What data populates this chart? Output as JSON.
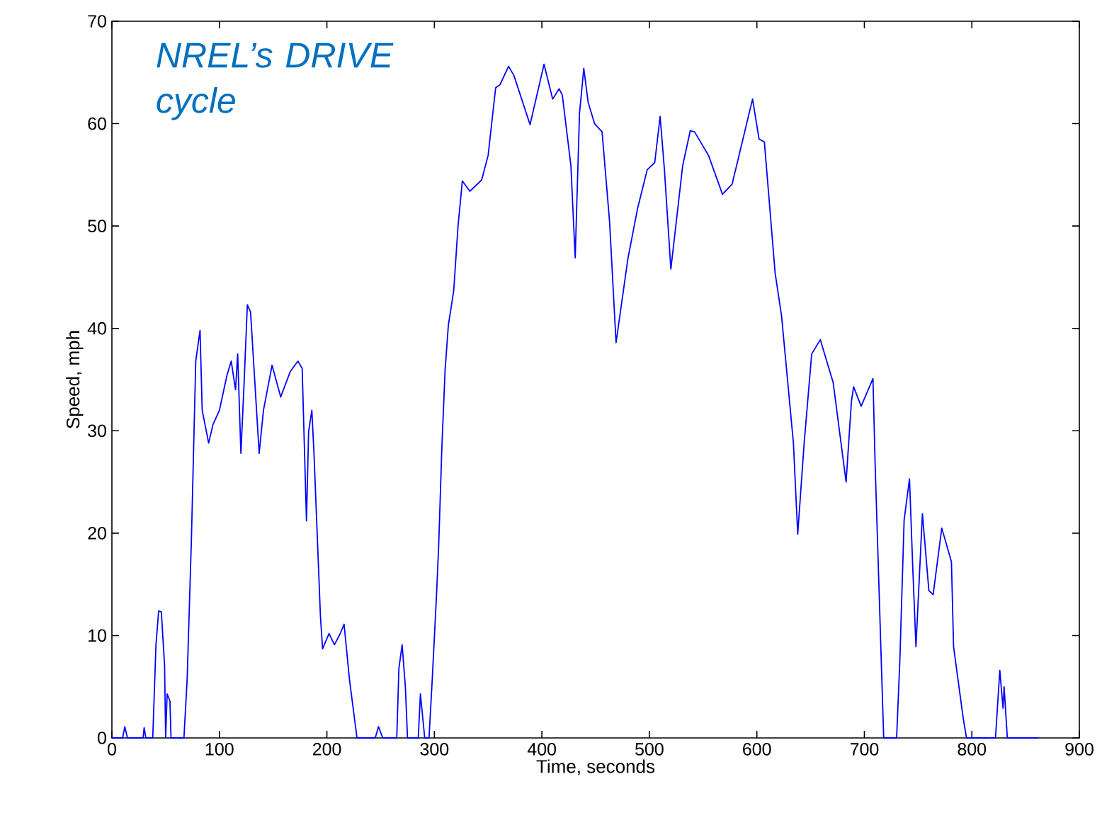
{
  "chart_data": {
    "type": "line",
    "title": "NREL’s DRIVE cycle",
    "xlabel": "Time, seconds",
    "ylabel": "Speed, mph",
    "xlim": [
      0,
      900
    ],
    "ylim": [
      0,
      70
    ],
    "xticks": [
      0,
      100,
      200,
      300,
      400,
      500,
      600,
      700,
      800,
      900
    ],
    "yticks": [
      0,
      10,
      20,
      30,
      40,
      50,
      60,
      70
    ],
    "grid": false,
    "marker": "none",
    "line_style": "solid",
    "series": [
      {
        "color": "#0000ff",
        "x": [
          0,
          10,
          12,
          14.5,
          29,
          30,
          31.6,
          38,
          41,
          43.5,
          46,
          49,
          50,
          51.4,
          54,
          55,
          67,
          70,
          74,
          78,
          82,
          84,
          90,
          94,
          100,
          107,
          111,
          115,
          117,
          120,
          123,
          126,
          129,
          133,
          137,
          141,
          149,
          157,
          166,
          173,
          177,
          181,
          183,
          186,
          188,
          194,
          196,
          202,
          207,
          212,
          216,
          221,
          228,
          245,
          248,
          252,
          265,
          267,
          270,
          273,
          275,
          285,
          287,
          291,
          295,
          298,
          302,
          304,
          307,
          310,
          313,
          318,
          322,
          326,
          333,
          344,
          350,
          357,
          361,
          369,
          374,
          389,
          402,
          410,
          416,
          419,
          427,
          431,
          435,
          439,
          443,
          449,
          456,
          463,
          469,
          480,
          489,
          498,
          505,
          510,
          514,
          520,
          526,
          531,
          538,
          542,
          555,
          568,
          577,
          596,
          602,
          607,
          617,
          623,
          634,
          638,
          644,
          651,
          659,
          671,
          683,
          688,
          690,
          697,
          708,
          710,
          716,
          718,
          730,
          733,
          737,
          742,
          745,
          748,
          754,
          760,
          764,
          772,
          781,
          783,
          792,
          795,
          822,
          826,
          829,
          830,
          833,
          862
        ],
        "values": [
          0,
          0,
          1.1,
          0,
          0,
          1,
          0,
          0,
          9.1,
          12.4,
          12.3,
          7.1,
          0,
          4.3,
          3.6,
          0,
          0,
          5.7,
          19.5,
          36.8,
          39.8,
          32,
          28.8,
          30.6,
          32,
          35.4,
          36.8,
          34,
          37.5,
          27.8,
          34.7,
          42.3,
          41.6,
          34.7,
          27.8,
          32,
          36.4,
          33.3,
          35.8,
          36.8,
          36.1,
          21.2,
          29.9,
          32,
          27.8,
          11.9,
          8.7,
          10.2,
          9.1,
          10.1,
          11.1,
          5.7,
          0,
          0,
          1.1,
          0,
          0,
          6.8,
          9.1,
          5,
          0,
          0,
          4.3,
          0,
          0,
          5.7,
          14,
          18.8,
          28.5,
          36,
          40.3,
          43.7,
          50,
          54.4,
          53.4,
          54.5,
          56.9,
          63.5,
          63.8,
          65.6,
          64.7,
          59.9,
          65.8,
          62.4,
          63.4,
          62.8,
          55.9,
          46.9,
          61,
          65.4,
          62.1,
          60,
          59.2,
          50.4,
          38.6,
          46.8,
          51.7,
          55.5,
          56.2,
          60.7,
          55.5,
          45.8,
          51.3,
          55.9,
          59.3,
          59.2,
          56.9,
          53.1,
          54.1,
          62.4,
          58.5,
          58.2,
          45.4,
          41.2,
          28.8,
          19.9,
          28.8,
          37.5,
          38.9,
          34.7,
          25,
          32.9,
          34.3,
          32.4,
          35.1,
          26.8,
          6.6,
          0,
          0,
          7.5,
          21.3,
          25.3,
          16.7,
          8.9,
          21.9,
          14.4,
          14,
          20.5,
          17.2,
          8.9,
          1.9,
          0,
          0,
          6.6,
          2.9,
          5,
          0,
          0
        ]
      }
    ]
  }
}
